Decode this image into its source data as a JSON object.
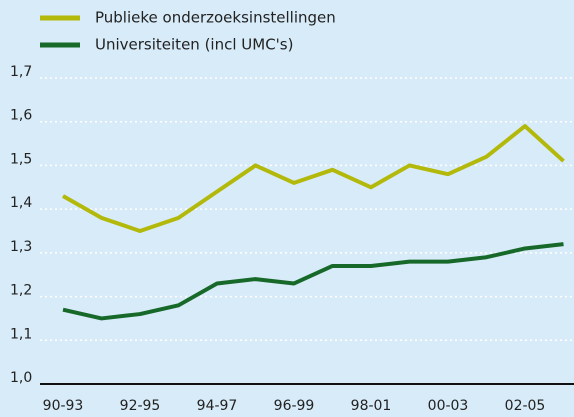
{
  "chart_data": {
    "type": "line",
    "categories": [
      "90-93",
      null,
      "92-95",
      null,
      "94-97",
      null,
      "96-99",
      null,
      "98-01",
      null,
      "00-03",
      null,
      "02-05",
      null
    ],
    "series": [
      {
        "name": "Publieke onderzoeksinstellingen",
        "color": "#b3b90a",
        "values": [
          1.43,
          1.38,
          1.35,
          1.38,
          1.44,
          1.5,
          1.46,
          1.49,
          1.45,
          1.5,
          1.48,
          1.52,
          1.59,
          1.51
        ]
      },
      {
        "name": "Universiteiten (incl UMC's)",
        "color": "#17692a",
        "values": [
          1.17,
          1.15,
          1.16,
          1.18,
          1.23,
          1.24,
          1.23,
          1.27,
          1.27,
          1.28,
          1.28,
          1.29,
          1.31,
          1.32
        ]
      }
    ],
    "ylim": [
      1.0,
      1.7
    ],
    "yticks": [
      {
        "value": 1.0,
        "label": "1,0"
      },
      {
        "value": 1.1,
        "label": "1,1"
      },
      {
        "value": 1.2,
        "label": "1,2"
      },
      {
        "value": 1.3,
        "label": "1,3"
      },
      {
        "value": 1.4,
        "label": "1,4"
      },
      {
        "value": 1.5,
        "label": "1,5"
      },
      {
        "value": 1.6,
        "label": "1,6"
      },
      {
        "value": 1.7,
        "label": "1,7"
      }
    ],
    "grid": true
  }
}
